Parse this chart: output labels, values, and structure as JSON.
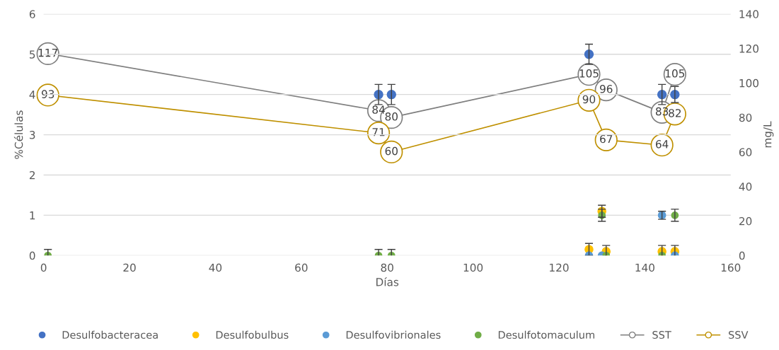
{
  "chart_data": {
    "type": "scatter",
    "xlabel": "Días",
    "ylabel": "%Células",
    "y2label": "mg/L",
    "xlim": [
      0,
      160
    ],
    "xticks": [
      0,
      20,
      40,
      60,
      80,
      100,
      120,
      140,
      160
    ],
    "ylim": [
      0,
      6
    ],
    "yticks": [
      0,
      1,
      2,
      3,
      4,
      5,
      6
    ],
    "y2lim": [
      0,
      140
    ],
    "y2ticks": [
      0,
      20,
      40,
      60,
      80,
      100,
      120,
      140
    ],
    "grid": "y",
    "legend": "bottom",
    "marker": "circle",
    "series": [
      {
        "name": "Desulfobacteracea",
        "color": "#4472c4",
        "x": [
          78,
          81,
          127,
          144,
          147
        ],
        "values": [
          4,
          4,
          5,
          4,
          4
        ],
        "errors": [
          0.25,
          0.25,
          0.25,
          0.25,
          0.2
        ]
      },
      {
        "name": "Desulfobulbus",
        "color": "#ffc000",
        "x": [
          127,
          130,
          131,
          144,
          147
        ],
        "values": [
          0.15,
          1.1,
          0.1,
          0.1,
          0.1
        ],
        "errors": [
          0.15,
          0.15,
          0.15,
          0.15,
          0.15
        ]
      },
      {
        "name": "Desulfovibrionales",
        "color": "#5b9bd5",
        "x": [
          127,
          130,
          144,
          147
        ],
        "values": [
          0,
          0,
          1,
          0
        ],
        "errors": [
          null,
          null,
          0.1,
          null
        ]
      },
      {
        "name": "Desulfotomaculum",
        "color": "#70ad47",
        "x": [
          1,
          78,
          81,
          130,
          131,
          144,
          147
        ],
        "values": [
          0,
          0,
          0,
          1,
          0,
          0,
          1
        ],
        "errors": [
          0.15,
          0.15,
          0.15,
          0.15,
          null,
          null,
          0.15
        ]
      },
      {
        "name": "SST",
        "type": "line",
        "axis": "y2",
        "color": "#7f7f7f",
        "x": [
          1,
          78,
          81,
          127,
          131,
          144,
          147
        ],
        "values": [
          117,
          84,
          80,
          105,
          96,
          83,
          105
        ],
        "value_labels": [
          "117",
          "84",
          "80",
          "105",
          "96",
          "83",
          "105"
        ]
      },
      {
        "name": "SSV",
        "type": "line",
        "axis": "y2",
        "color": "#bf9000",
        "x": [
          1,
          78,
          81,
          127,
          131,
          144,
          147
        ],
        "values": [
          93,
          71,
          60,
          90,
          67,
          64,
          82
        ],
        "value_labels": [
          "93",
          "71",
          "60",
          "90",
          "67",
          "64",
          "82"
        ]
      }
    ]
  }
}
